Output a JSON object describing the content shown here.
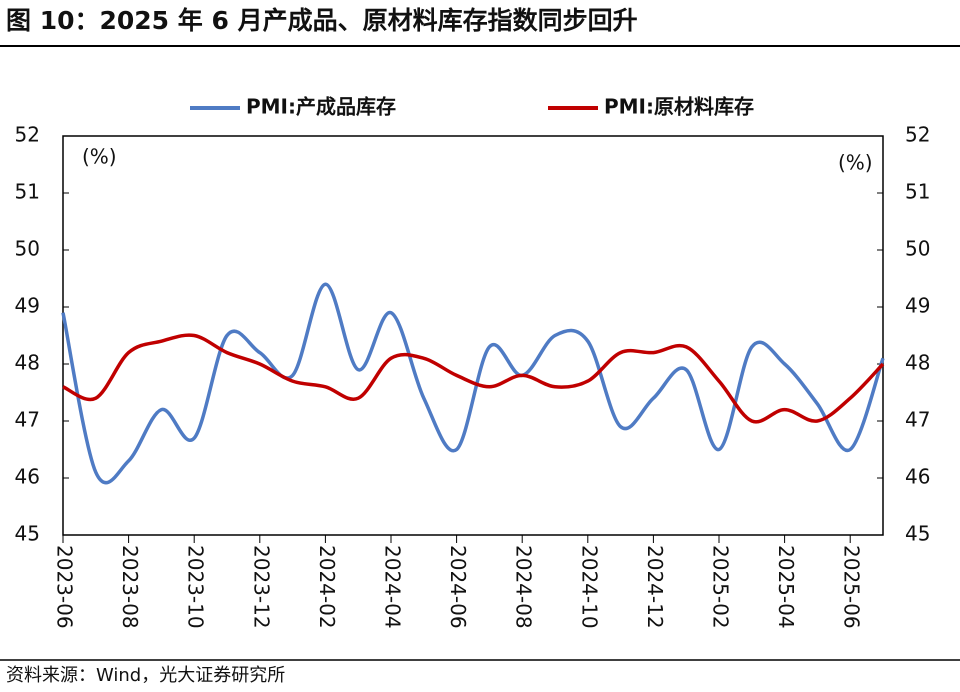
{
  "chart_data": {
    "type": "line",
    "title": "图 10：2025 年 6 月产成品、原材料库存指数同步回升",
    "source": "资料来源：Wind，光大证券研究所",
    "y_unit": "(%)",
    "y2_unit": "(%)",
    "categories": [
      "2023-06",
      null,
      "2023-08",
      null,
      "2023-10",
      null,
      "2023-12",
      null,
      "2024-02",
      null,
      "2024-04",
      null,
      "2024-06",
      null,
      "2024-08",
      null,
      "2024-10",
      null,
      "2024-12",
      null,
      "2025-02",
      null,
      "2025-04",
      null,
      "2025-06",
      null
    ],
    "series": [
      {
        "name": "PMI:产成品库存",
        "color": "#4f7bc4",
        "values": [
          48.9,
          46.1,
          46.3,
          47.2,
          46.7,
          48.5,
          48.2,
          47.8,
          49.4,
          47.9,
          48.9,
          47.4,
          46.5,
          48.3,
          47.8,
          48.5,
          48.4,
          46.9,
          47.4,
          47.9,
          46.5,
          48.3,
          48.0,
          47.3,
          46.5,
          48.1
        ]
      },
      {
        "name": "PMI:原材料库存",
        "color": "#c00000",
        "values": [
          47.6,
          47.4,
          48.2,
          48.4,
          48.5,
          48.2,
          48.0,
          47.7,
          47.6,
          47.4,
          48.1,
          48.1,
          47.8,
          47.6,
          47.8,
          47.6,
          47.7,
          48.2,
          48.2,
          48.3,
          47.7,
          47.0,
          47.2,
          47.0,
          47.4,
          48.0
        ]
      }
    ],
    "ylim": [
      45,
      52
    ],
    "yticks": [
      45,
      46,
      47,
      48,
      49,
      50,
      51,
      52
    ],
    "y2lim": [
      45,
      52
    ],
    "y2ticks": [
      45,
      46,
      47,
      48,
      49,
      50,
      51,
      52
    ],
    "legend": "top"
  }
}
